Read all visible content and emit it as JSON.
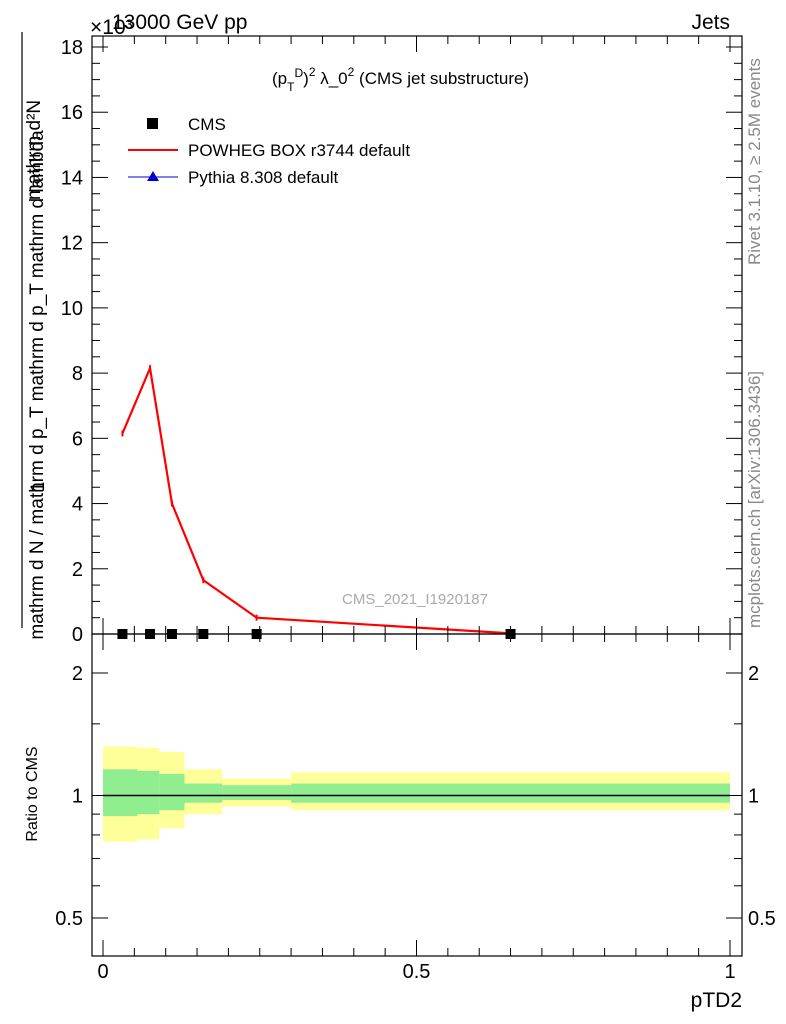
{
  "header": {
    "top_left": "13000 GeV pp",
    "top_right": "Jets",
    "exponent": "×10³"
  },
  "side_labels": {
    "rivet": "Rivet 3.1.10, ≥ 2.5M events",
    "mcplots": "mcplots.cern.ch [arXiv:1306.3436]"
  },
  "plot_title": "(p_T^D)^2 λ_0^2 (CMS jet substructure)",
  "watermark": "CMS_2021_I1920187",
  "legend": {
    "cms": "CMS",
    "powheg": "POWHEG BOX r3744 default",
    "pythia": "Pythia 8.308 default"
  },
  "ylabel_main": {
    "numerator": "mathrm d²N",
    "prefix": "1",
    "denominator": "mathrm d N / mathrm d p_T mathrm d p_T mathrm d lambda"
  },
  "ylabel_ratio": "Ratio to CMS",
  "xlabel": "pTD2",
  "colors": {
    "powheg": "#ff0000",
    "pythia": "#0000cc",
    "cms": "#000000",
    "band_stat": "#90ee90",
    "band_total": "#ffff99",
    "side_text": "#888888"
  },
  "chart_data": [
    {
      "type": "line",
      "panel": "main",
      "title": "(p_T^D)^2 λ_0^2 (CMS jet substructure)",
      "xlim": [
        0,
        1
      ],
      "ylim": [
        0,
        18.2
      ],
      "y_scale_factor": "×10³",
      "y_ticks": [
        0,
        2,
        4,
        6,
        8,
        10,
        12,
        14,
        16,
        18
      ],
      "series": [
        {
          "name": "CMS",
          "marker": "square",
          "x": [
            0.031,
            0.075,
            0.11,
            0.16,
            0.245,
            0.65
          ],
          "y": [
            0.0,
            0.0,
            0.0,
            0.0,
            0.0,
            0.0
          ]
        },
        {
          "name": "POWHEG BOX r3744 default",
          "marker": "line",
          "x": [
            0.031,
            0.075,
            0.11,
            0.16,
            0.245,
            0.65
          ],
          "y": [
            6.15,
            8.15,
            4.0,
            1.65,
            0.5,
            0.02
          ]
        }
      ]
    },
    {
      "type": "area",
      "panel": "ratio",
      "ylabel": "Ratio to CMS",
      "xlabel": "pTD2",
      "xlim": [
        0,
        1
      ],
      "y_scale": "log",
      "ylim": [
        0.4,
        2.3
      ],
      "y_ticks": [
        0.5,
        1,
        2
      ],
      "x_ticks": [
        0,
        0.5,
        1
      ],
      "x_tick_labels": [
        "0",
        "0.5",
        "1"
      ],
      "bins": [
        {
          "x_lo": 0.0,
          "x_hi": 0.055,
          "stat_lo": 0.89,
          "stat_hi": 1.16,
          "tot_lo": 0.77,
          "tot_hi": 1.32
        },
        {
          "x_lo": 0.055,
          "x_hi": 0.09,
          "stat_lo": 0.9,
          "stat_hi": 1.15,
          "tot_lo": 0.78,
          "tot_hi": 1.31
        },
        {
          "x_lo": 0.09,
          "x_hi": 0.13,
          "stat_lo": 0.92,
          "stat_hi": 1.13,
          "tot_lo": 0.83,
          "tot_hi": 1.28
        },
        {
          "x_lo": 0.13,
          "x_hi": 0.19,
          "stat_lo": 0.96,
          "stat_hi": 1.07,
          "tot_lo": 0.9,
          "tot_hi": 1.16
        },
        {
          "x_lo": 0.19,
          "x_hi": 0.3,
          "stat_lo": 0.975,
          "stat_hi": 1.06,
          "tot_lo": 0.94,
          "tot_hi": 1.1
        },
        {
          "x_lo": 0.3,
          "x_hi": 1.0,
          "stat_lo": 0.96,
          "stat_hi": 1.07,
          "tot_lo": 0.92,
          "tot_hi": 1.14
        }
      ],
      "reference_line": 1
    }
  ]
}
